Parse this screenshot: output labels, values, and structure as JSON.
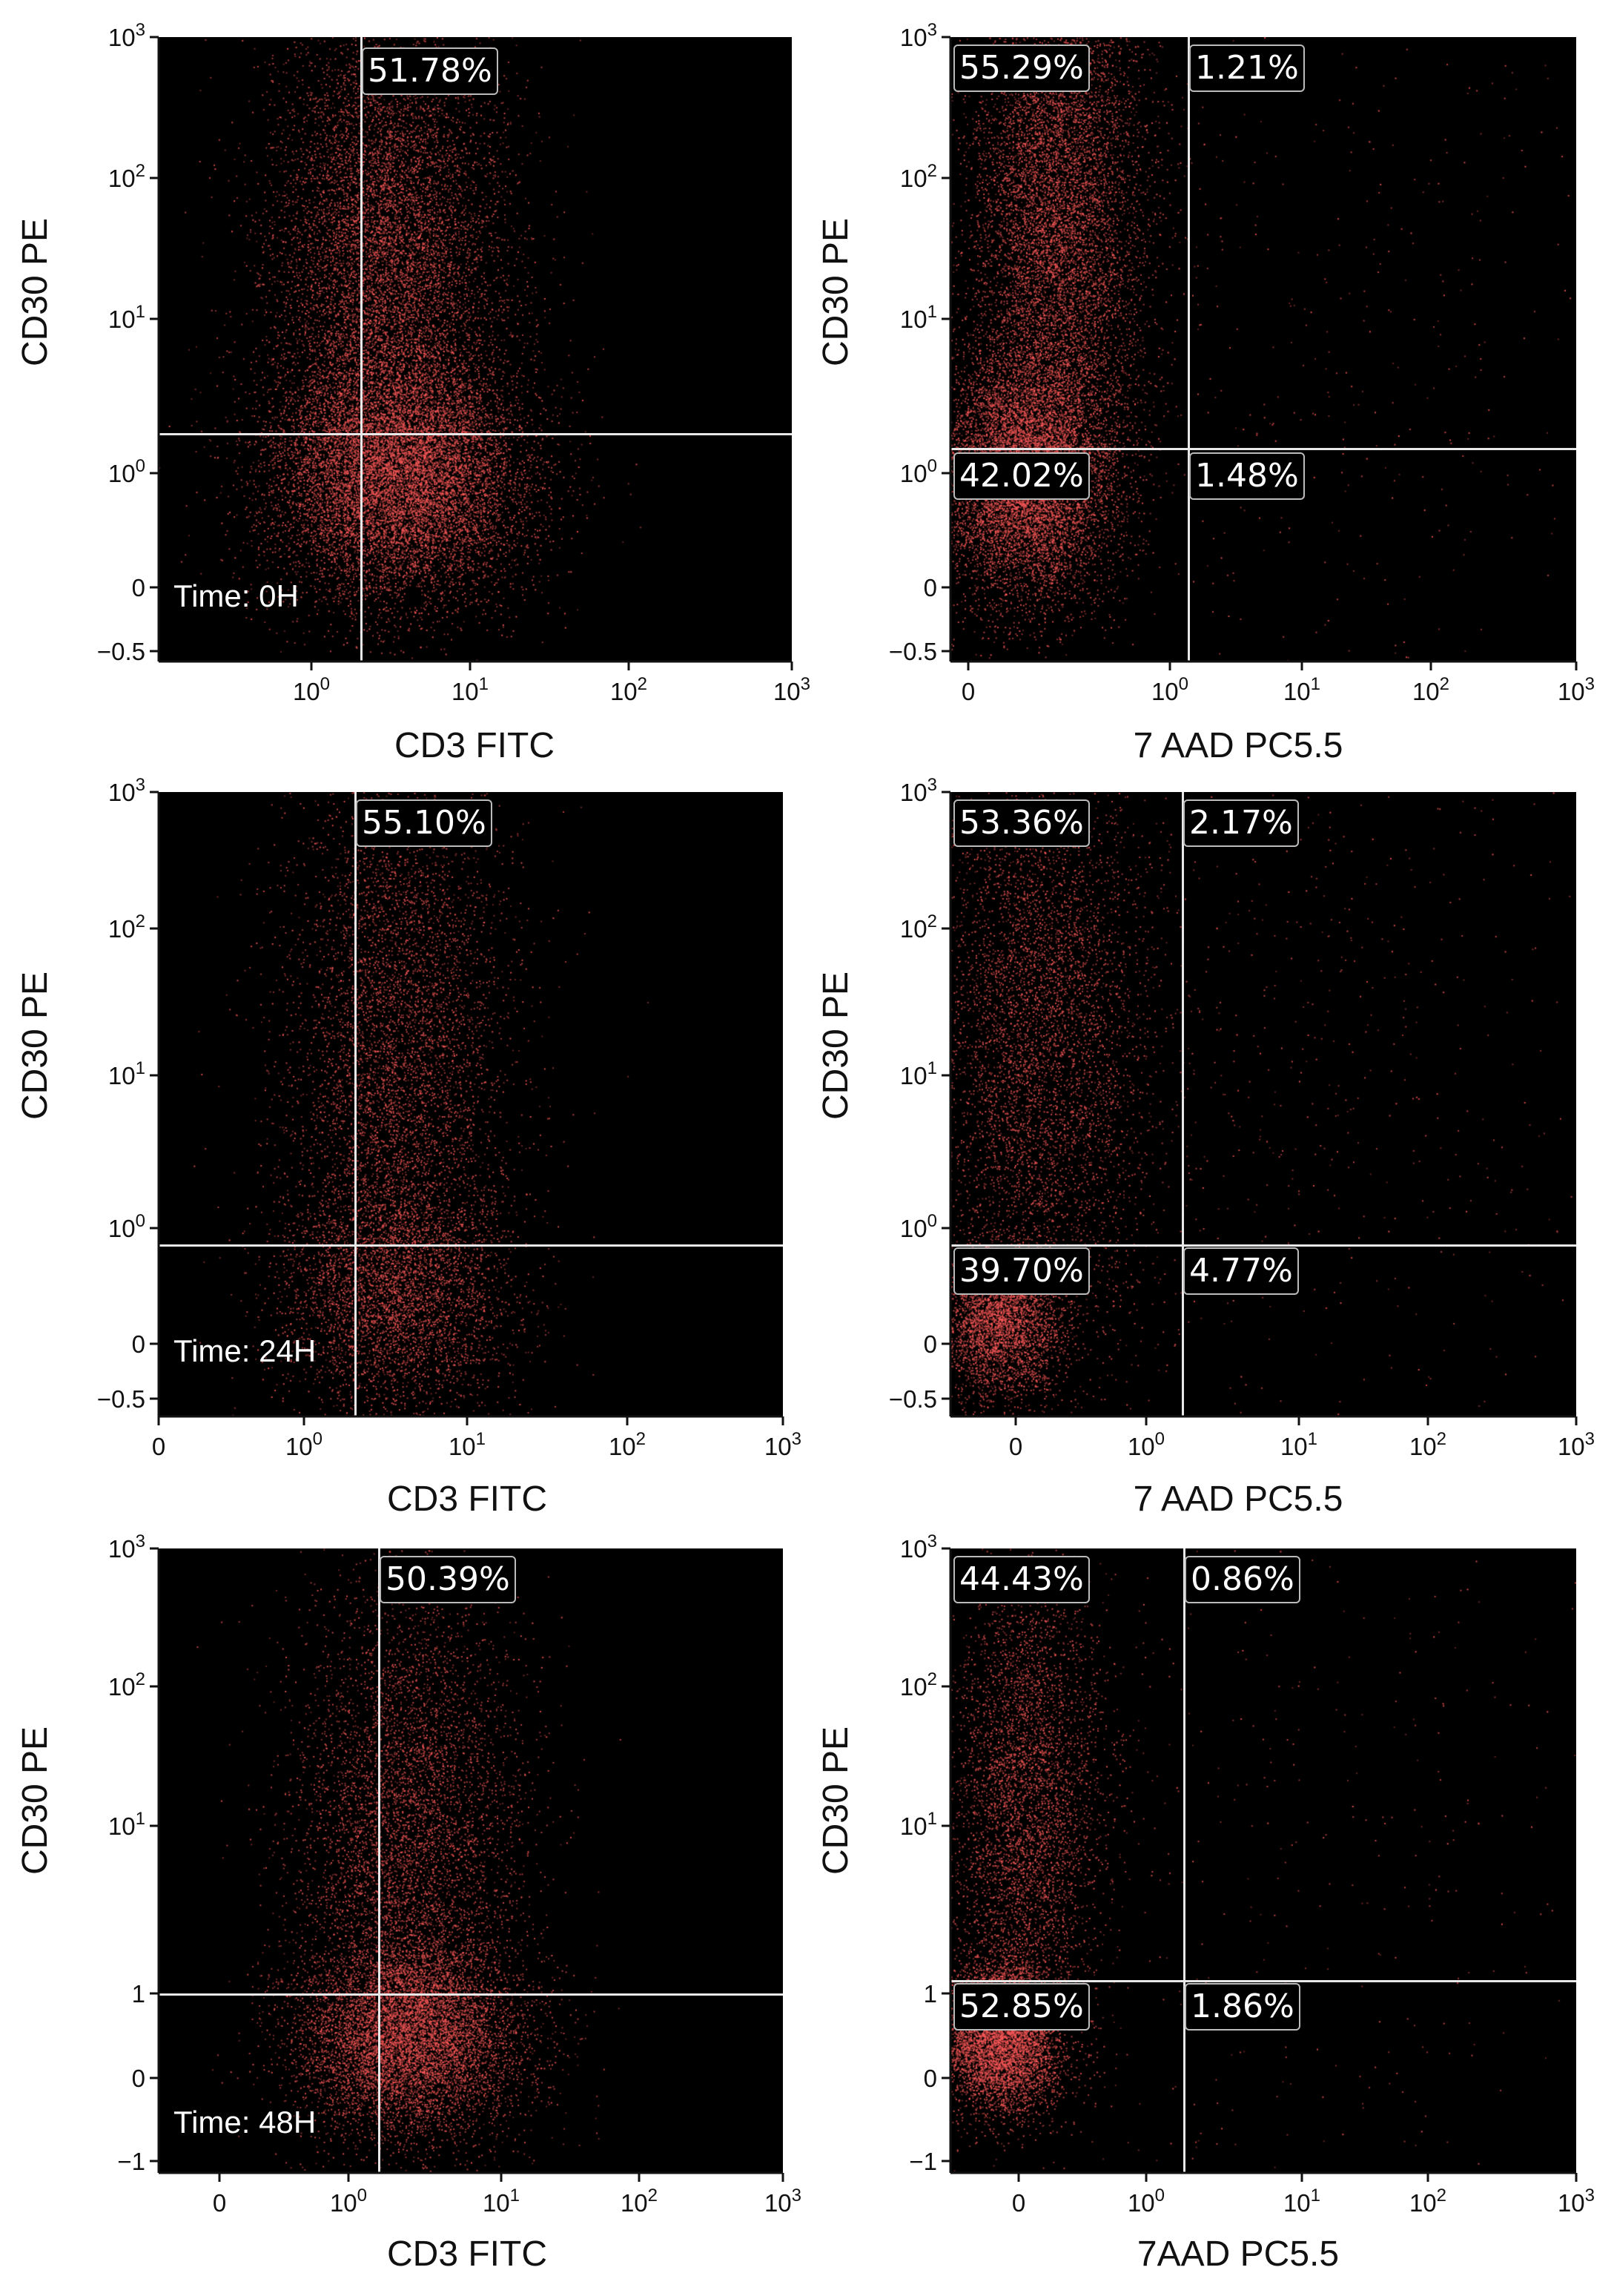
{
  "chart_data": [
    {
      "type": "scatter",
      "xlabel": "CD3 FITC",
      "ylabel": "CD30 PE",
      "annotation": "Time: 0H",
      "x_ticks": [
        "10^0",
        "10^1",
        "10^2",
        "10^3"
      ],
      "y_ticks": [
        "-0.5",
        "0",
        "10^0",
        "10^1",
        "10^2",
        "10^3"
      ],
      "quadrants": [
        {
          "pos": "upper-right",
          "value": "51.78%"
        }
      ],
      "dot_color": "#ff5a5a"
    },
    {
      "type": "scatter",
      "xlabel": "7 AAD PC5.5",
      "ylabel": "CD30 PE",
      "annotation": "",
      "x_ticks": [
        "0",
        "10^0",
        "10^1",
        "10^2",
        "10^3"
      ],
      "y_ticks": [
        "-0.5",
        "0",
        "10^0",
        "10^1",
        "10^2",
        "10^3"
      ],
      "quadrants": [
        {
          "pos": "upper-left",
          "value": "55.29%"
        },
        {
          "pos": "upper-right",
          "value": "1.21%"
        },
        {
          "pos": "lower-left",
          "value": "42.02%"
        },
        {
          "pos": "lower-right",
          "value": "1.48%"
        }
      ],
      "dot_color": "#ff5a5a"
    },
    {
      "type": "scatter",
      "xlabel": "CD3 FITC",
      "ylabel": "CD30 PE",
      "annotation": "Time: 24H",
      "x_ticks": [
        "0",
        "10^0",
        "10^1",
        "10^2",
        "10^3"
      ],
      "y_ticks": [
        "-0.5",
        "0",
        "10^0",
        "10^1",
        "10^2",
        "10^3"
      ],
      "quadrants": [
        {
          "pos": "upper-right",
          "value": "55.10%"
        }
      ],
      "dot_color": "#ff5a5a"
    },
    {
      "type": "scatter",
      "xlabel": "7 AAD PC5.5",
      "ylabel": "CD30 PE",
      "annotation": "",
      "x_ticks": [
        "0",
        "10^0",
        "10^1",
        "10^2",
        "10^3"
      ],
      "y_ticks": [
        "-0.5",
        "0",
        "10^0",
        "10^1",
        "10^2",
        "10^3"
      ],
      "quadrants": [
        {
          "pos": "upper-left",
          "value": "53.36%"
        },
        {
          "pos": "upper-right",
          "value": "2.17%"
        },
        {
          "pos": "lower-left",
          "value": "39.70%"
        },
        {
          "pos": "lower-right",
          "value": "4.77%"
        }
      ],
      "dot_color": "#ff5a5a"
    },
    {
      "type": "scatter",
      "xlabel": "CD3 FITC",
      "ylabel": "CD30 PE",
      "annotation": "Time: 48H",
      "x_ticks": [
        "0",
        "10^0",
        "10^1",
        "10^2",
        "10^3"
      ],
      "y_ticks": [
        "-1",
        "0",
        "1",
        "10^1",
        "10^2",
        "10^3"
      ],
      "quadrants": [
        {
          "pos": "upper-right",
          "value": "50.39%"
        }
      ],
      "dot_color": "#ff5a5a"
    },
    {
      "type": "scatter",
      "xlabel": "7AAD PC5.5",
      "ylabel": "CD30 PE",
      "annotation": "",
      "x_ticks": [
        "0",
        "10^0",
        "10^1",
        "10^2",
        "10^3"
      ],
      "y_ticks": [
        "-1",
        "0",
        "1",
        "10^1",
        "10^2",
        "10^3"
      ],
      "quadrants": [
        {
          "pos": "upper-left",
          "value": "44.43%"
        },
        {
          "pos": "upper-right",
          "value": "0.86%"
        },
        {
          "pos": "lower-left",
          "value": "52.85%"
        },
        {
          "pos": "lower-right",
          "value": "1.86%"
        }
      ],
      "dot_color": "#ff5a5a"
    }
  ]
}
